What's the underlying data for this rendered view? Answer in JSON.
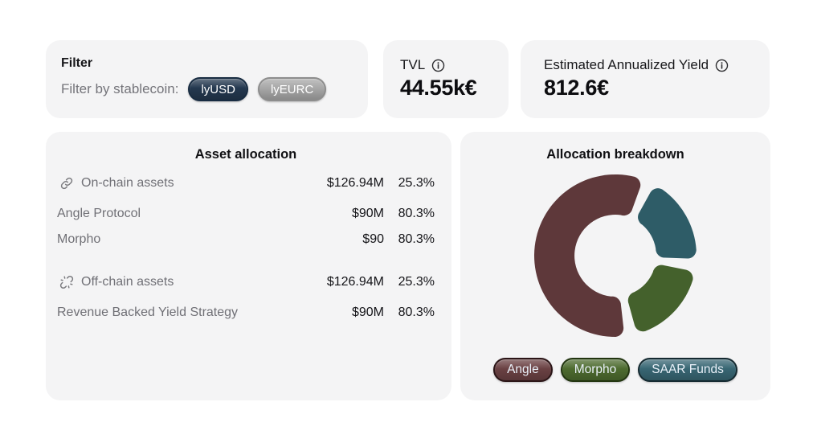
{
  "filter_card": {
    "title": "Filter",
    "label": "Filter by stablecoin:",
    "options": [
      {
        "label": "lyUSD",
        "selected": true,
        "color": "#24384f",
        "border_color": "#182c42"
      },
      {
        "label": "lyEURC",
        "selected": false,
        "color": "#a7a7a7",
        "border_color": "#8d8d8d"
      }
    ]
  },
  "stats": [
    {
      "title": "TVL",
      "value": "44.55k€",
      "icon": "info-icon"
    },
    {
      "title": "Estimated Annualized Yield",
      "value": "812.6€",
      "icon": "info-icon"
    }
  ],
  "asset_allocation": {
    "title": "Asset allocation",
    "rows": [
      {
        "icon": "chain-link-icon",
        "label": "On-chain assets",
        "amount": "$126.94M",
        "percent": "25.3%"
      },
      {
        "label": "Angle Protocol",
        "amount": "$90M",
        "percent": "80.3%"
      },
      {
        "label": "Morpho",
        "amount": "$90",
        "percent": "80.3%"
      },
      {
        "icon": "broken-chain-link-icon",
        "label": "Off-chain assets",
        "amount": "$126.94M",
        "percent": "25.3%"
      },
      {
        "label": "Revenue Backed Yield Strategy",
        "amount": "$90M",
        "percent": "80.3%"
      }
    ]
  },
  "allocation_breakdown": {
    "title": "Allocation breakdown",
    "legend": [
      {
        "label": "Angle",
        "color": "#6a4143",
        "border_color": "#2b1517"
      },
      {
        "label": "Morpho",
        "color": "#4d6b2f",
        "border_color": "#223510"
      },
      {
        "label": "SAAR Funds",
        "color": "#386673",
        "border_color": "#152a31"
      }
    ]
  },
  "chart_data": {
    "type": "donut",
    "title": "Allocation breakdown",
    "series": [
      {
        "name": "SAAR Funds",
        "value": 19,
        "color": "#2e5c67"
      },
      {
        "name": "Morpho",
        "value": 19,
        "color": "#44612c"
      },
      {
        "name": "Angle",
        "value": 62,
        "color": "#5e383a"
      }
    ],
    "start_angle_deg": 29,
    "pad_angle_deg": 9,
    "outer_radius": 101,
    "inner_radius": 51,
    "corner_radius": 11,
    "legend_position": "bottom",
    "legend_order": [
      "Angle",
      "Morpho",
      "SAAR Funds"
    ]
  }
}
